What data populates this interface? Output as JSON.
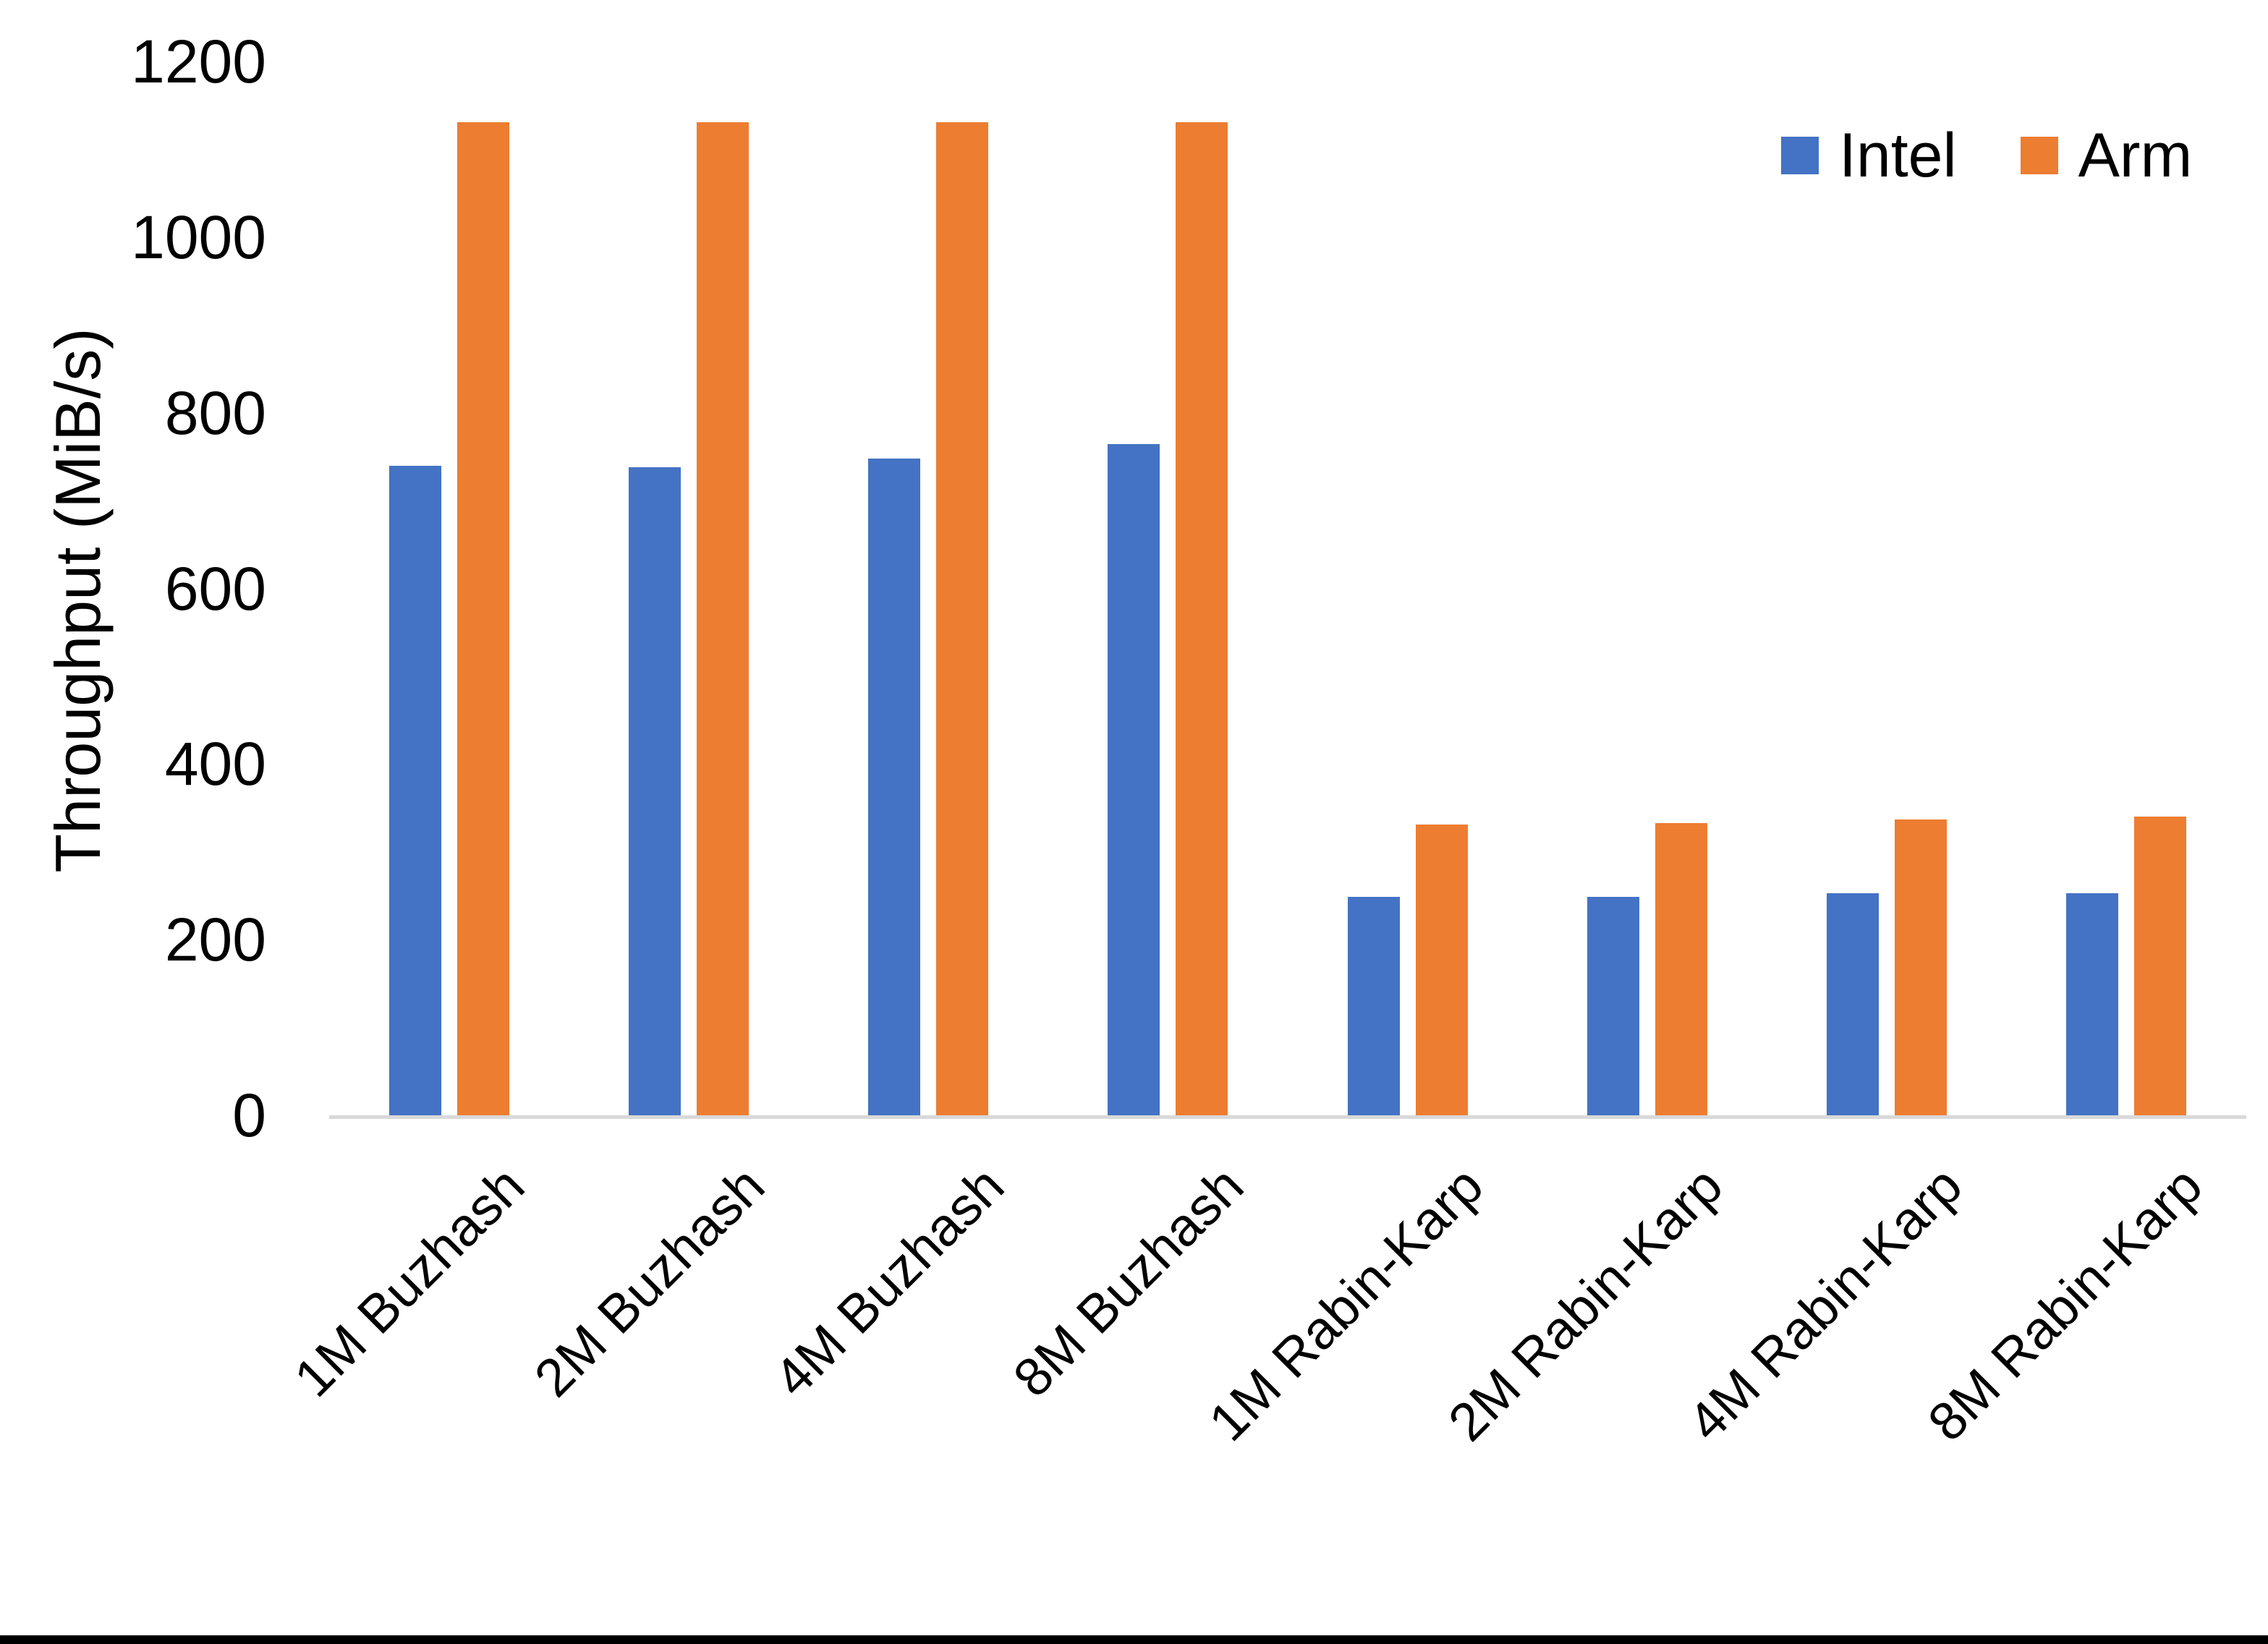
{
  "chart_data": {
    "type": "bar",
    "title": "",
    "ylabel": "Throughput (MiB/s)",
    "xlabel": "",
    "categories": [
      "1M Buzhash",
      "2M Buzhash",
      "4M Buzhash",
      "8M Buzhash",
      "1M Rabin-Karp",
      "2M Rabin-Karp",
      "4M Rabin-Karp",
      "8M Rabin-Karp"
    ],
    "series": [
      {
        "name": "Intel",
        "color": "#4472C4",
        "values": [
          740,
          738,
          748,
          764,
          249,
          249,
          253,
          253
        ]
      },
      {
        "name": "Arm",
        "color": "#ED7D31",
        "values": [
          1131,
          1131,
          1131,
          1131,
          331,
          333,
          337,
          340
        ]
      }
    ],
    "ylim": [
      0,
      1200
    ],
    "yticks": [
      0,
      200,
      400,
      600,
      800,
      1000,
      1200
    ],
    "grid": false,
    "legend_position": "top-right",
    "axis_line_color": "#D9D9D9"
  }
}
